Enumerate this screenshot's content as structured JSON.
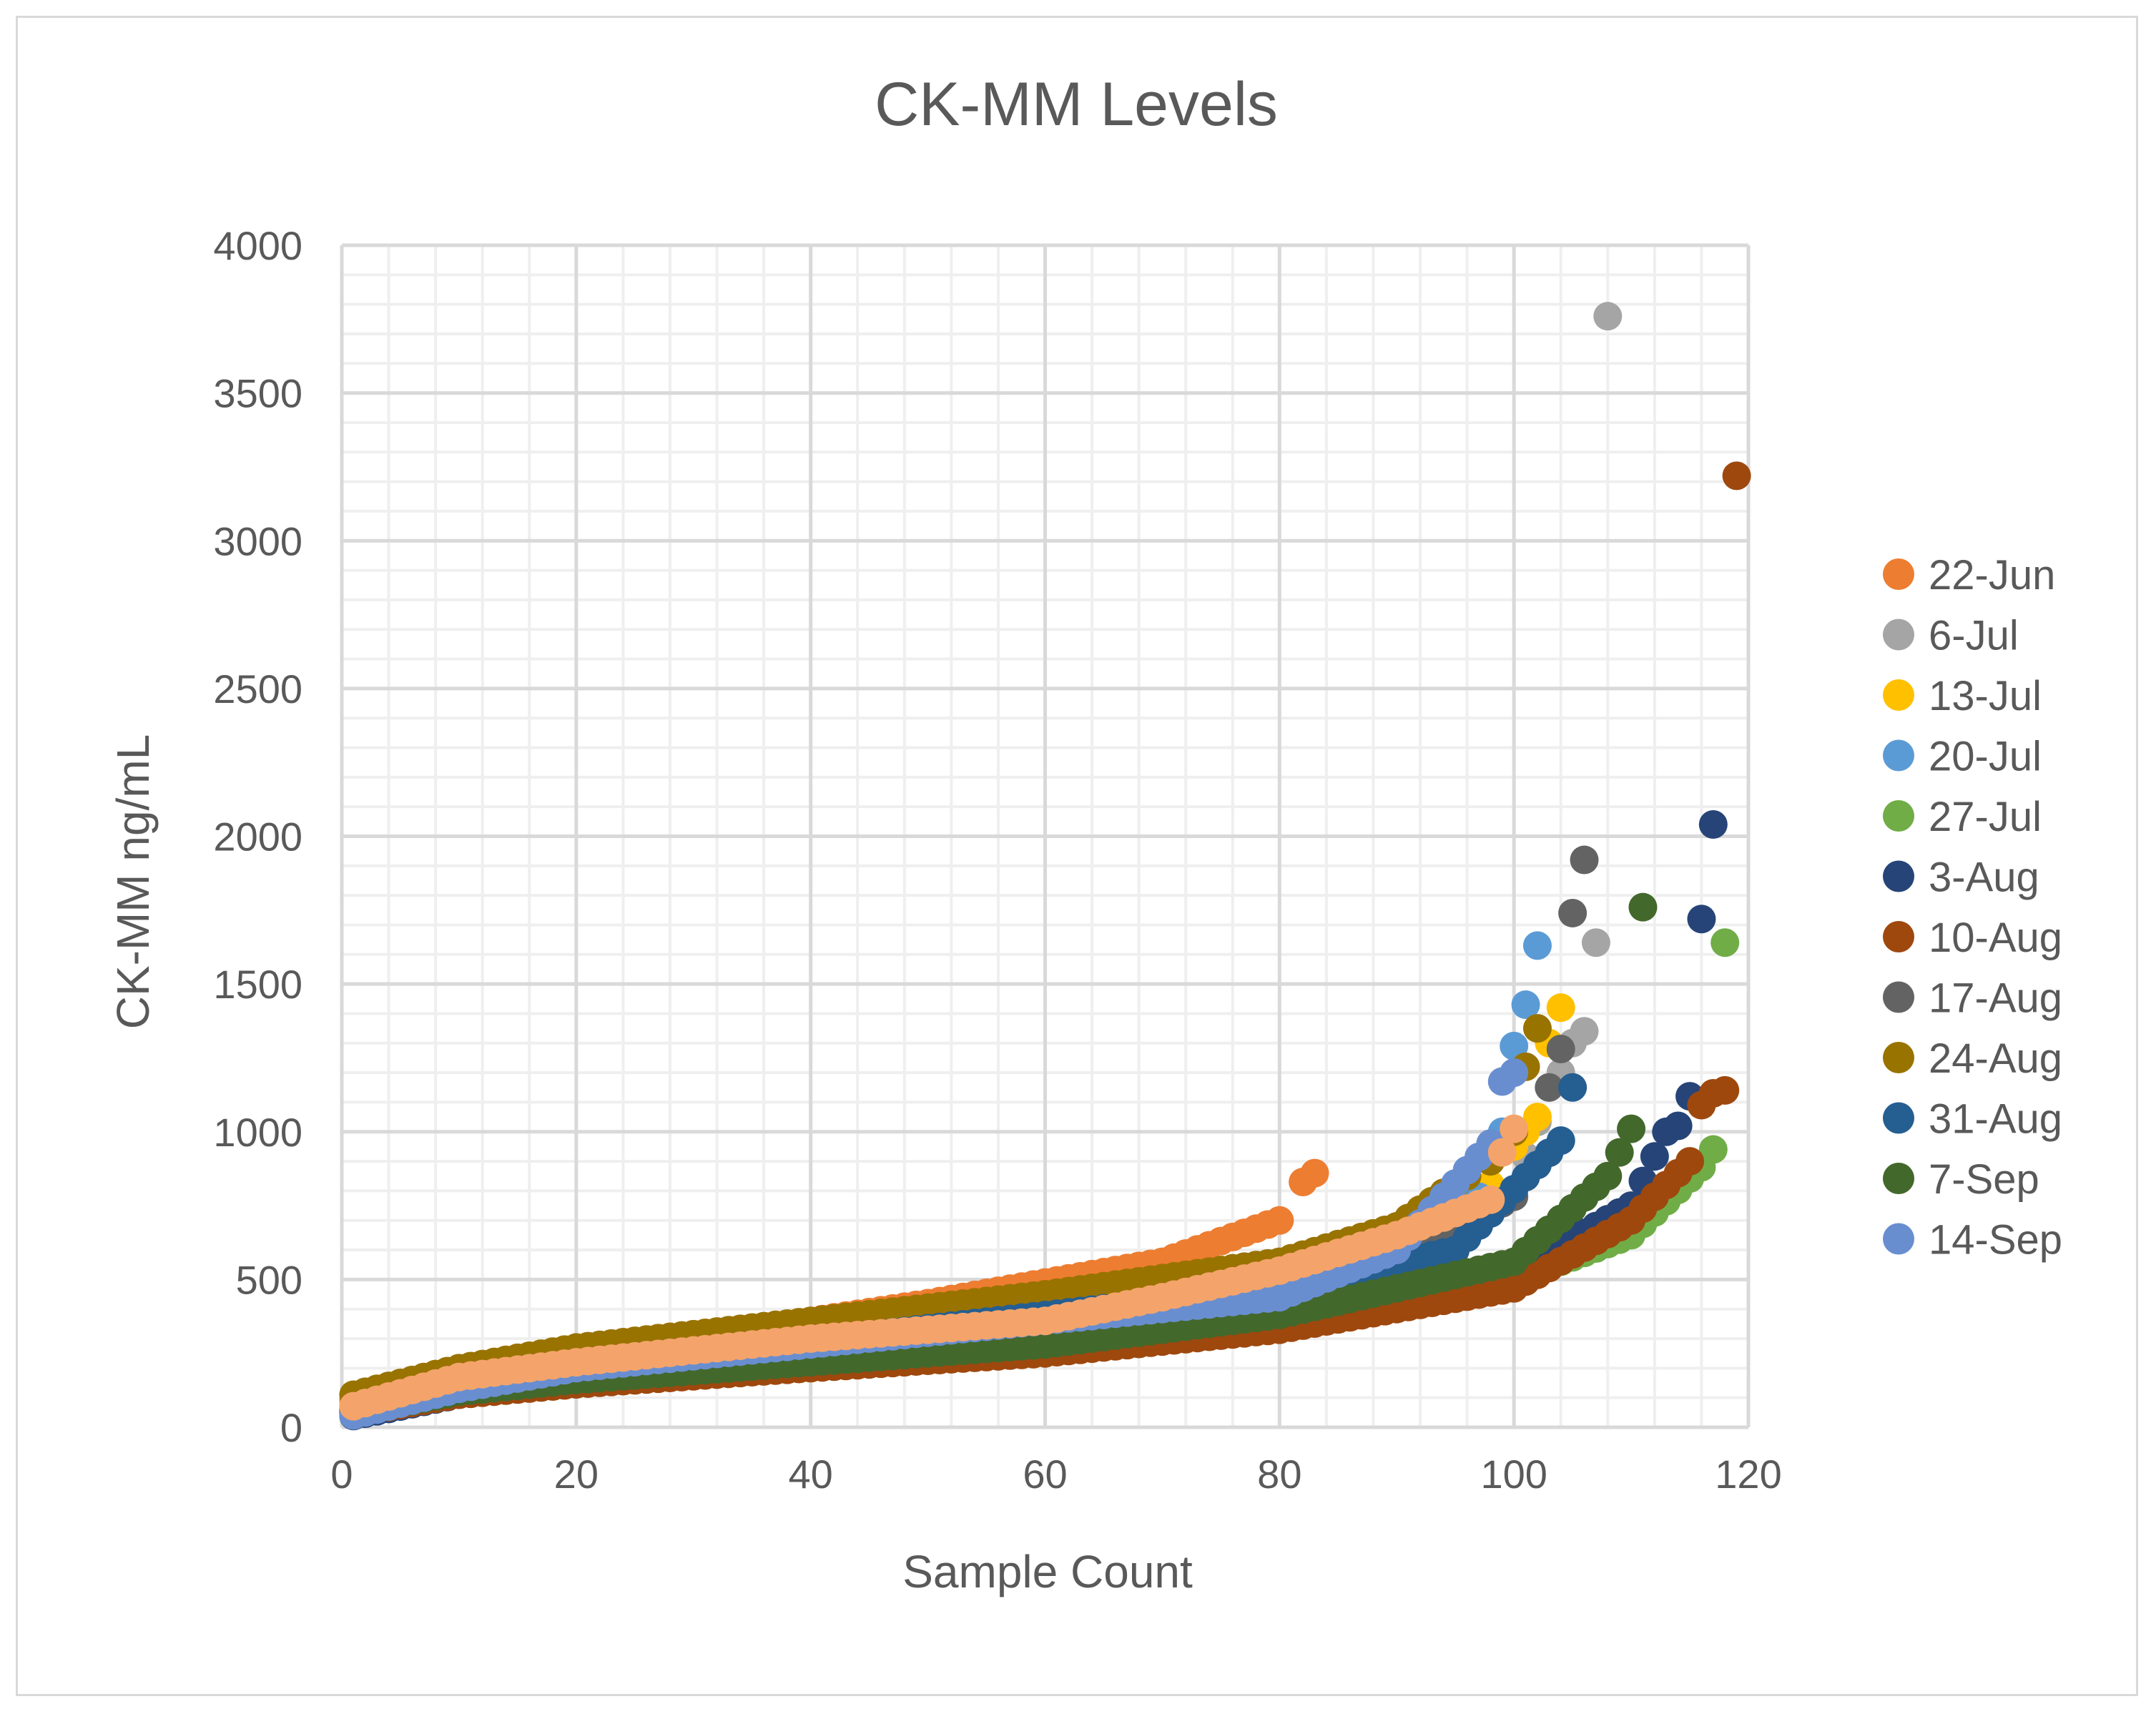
{
  "chart_data": {
    "type": "scatter",
    "title": "CK-MM Levels",
    "xlabel": "Sample Count",
    "ylabel": "CK-MM ng/mL",
    "xlim": [
      0,
      120
    ],
    "ylim": [
      0,
      4000
    ],
    "x_ticks": [
      0,
      20,
      40,
      60,
      80,
      100,
      120
    ],
    "y_ticks": [
      0,
      500,
      1000,
      1500,
      2000,
      2500,
      3000,
      3500,
      4000
    ],
    "x_tick_labels": [
      "0",
      "20",
      "40",
      "60",
      "80",
      "100",
      "120"
    ],
    "y_tick_labels": [
      "0",
      "500",
      "1000",
      "1500",
      "2000",
      "2500",
      "3000",
      "3500",
      "4000"
    ],
    "grid": "major and minor",
    "legend_position": "right",
    "series": [
      {
        "name": "22-Jun",
        "color": "#ED7D31",
        "n": 83,
        "curve": [
          [
            0,
            80
          ],
          [
            10,
            190
          ],
          [
            20,
            250
          ],
          [
            40,
            360
          ],
          [
            50,
            420
          ],
          [
            60,
            490
          ],
          [
            70,
            560
          ],
          [
            75,
            630
          ],
          [
            80,
            700
          ]
        ],
        "outliers": [
          [
            82,
            830
          ],
          [
            83,
            860
          ]
        ]
      },
      {
        "name": "6-Jul",
        "color": "#A5A5A5",
        "n": 108,
        "curve": [
          [
            0,
            50
          ],
          [
            10,
            150
          ],
          [
            20,
            200
          ],
          [
            40,
            280
          ],
          [
            60,
            360
          ],
          [
            80,
            460
          ],
          [
            90,
            560
          ],
          [
            100,
            800
          ],
          [
            103,
            1150
          ]
        ],
        "outliers": [
          [
            104,
            1200
          ],
          [
            105,
            1300
          ],
          [
            106,
            1340
          ],
          [
            107,
            1640
          ],
          [
            108,
            3760
          ]
        ]
      },
      {
        "name": "13-Jul",
        "color": "#FFC000",
        "n": 104,
        "curve": [
          [
            0,
            60
          ],
          [
            10,
            160
          ],
          [
            20,
            210
          ],
          [
            40,
            290
          ],
          [
            60,
            370
          ],
          [
            80,
            470
          ],
          [
            90,
            560
          ],
          [
            98,
            820
          ]
        ],
        "outliers": [
          [
            100,
            950
          ],
          [
            101,
            1000
          ],
          [
            102,
            1050
          ],
          [
            103,
            1300
          ],
          [
            104,
            1420
          ]
        ]
      },
      {
        "name": "20-Jul",
        "color": "#5B9BD5",
        "n": 102,
        "curve": [
          [
            0,
            40
          ],
          [
            10,
            140
          ],
          [
            20,
            200
          ],
          [
            40,
            290
          ],
          [
            60,
            370
          ],
          [
            80,
            460
          ],
          [
            90,
            560
          ],
          [
            97,
            780
          ]
        ],
        "outliers": [
          [
            98,
            900
          ],
          [
            99,
            1000
          ],
          [
            100,
            1290
          ],
          [
            101,
            1430
          ],
          [
            102,
            1630
          ]
        ]
      },
      {
        "name": "27-Jul",
        "color": "#70AD47",
        "n": 118,
        "curve": [
          [
            0,
            50
          ],
          [
            10,
            120
          ],
          [
            20,
            160
          ],
          [
            40,
            220
          ],
          [
            60,
            280
          ],
          [
            80,
            360
          ],
          [
            100,
            500
          ],
          [
            110,
            650
          ],
          [
            116,
            880
          ]
        ],
        "outliers": [
          [
            117,
            940
          ],
          [
            118,
            1640
          ]
        ]
      },
      {
        "name": "3-Aug",
        "color": "#264478",
        "n": 117,
        "curve": [
          [
            0,
            30
          ],
          [
            10,
            110
          ],
          [
            20,
            150
          ],
          [
            40,
            220
          ],
          [
            60,
            300
          ],
          [
            80,
            380
          ],
          [
            100,
            520
          ],
          [
            110,
            750
          ],
          [
            113,
            1000
          ]
        ],
        "outliers": [
          [
            114,
            1020
          ],
          [
            115,
            1120
          ],
          [
            116,
            1720
          ],
          [
            117,
            2040
          ]
        ]
      },
      {
        "name": "10-Aug",
        "color": "#9E480E",
        "n": 119,
        "curve": [
          [
            0,
            40
          ],
          [
            10,
            110
          ],
          [
            20,
            145
          ],
          [
            40,
            200
          ],
          [
            60,
            250
          ],
          [
            80,
            330
          ],
          [
            100,
            470
          ],
          [
            110,
            700
          ],
          [
            115,
            900
          ]
        ],
        "outliers": [
          [
            116,
            1090
          ],
          [
            117,
            1130
          ],
          [
            118,
            1140
          ],
          [
            119,
            3220
          ]
        ]
      },
      {
        "name": "17-Aug",
        "color": "#636363",
        "n": 106,
        "curve": [
          [
            0,
            50
          ],
          [
            10,
            150
          ],
          [
            20,
            200
          ],
          [
            40,
            280
          ],
          [
            60,
            360
          ],
          [
            80,
            460
          ],
          [
            90,
            560
          ],
          [
            100,
            780
          ]
        ],
        "outliers": [
          [
            103,
            1150
          ],
          [
            104,
            1280
          ],
          [
            105,
            1740
          ],
          [
            106,
            1920
          ]
        ]
      },
      {
        "name": "24-Aug",
        "color": "#997300",
        "n": 102,
        "curve": [
          [
            0,
            100
          ],
          [
            10,
            200
          ],
          [
            20,
            270
          ],
          [
            40,
            360
          ],
          [
            60,
            450
          ],
          [
            80,
            560
          ],
          [
            90,
            680
          ],
          [
            96,
            850
          ]
        ],
        "outliers": [
          [
            98,
            900
          ],
          [
            100,
            1000
          ],
          [
            101,
            1220
          ],
          [
            102,
            1350
          ]
        ]
      },
      {
        "name": "31-Aug",
        "color": "#255E91",
        "n": 105,
        "curve": [
          [
            0,
            40
          ],
          [
            10,
            140
          ],
          [
            20,
            200
          ],
          [
            40,
            290
          ],
          [
            60,
            380
          ],
          [
            80,
            470
          ],
          [
            95,
            600
          ],
          [
            104,
            970
          ]
        ],
        "outliers": [
          [
            105,
            1150
          ]
        ]
      },
      {
        "name": "7-Sep",
        "color": "#43682B",
        "n": 111,
        "curve": [
          [
            0,
            40
          ],
          [
            10,
            120
          ],
          [
            20,
            160
          ],
          [
            40,
            220
          ],
          [
            60,
            280
          ],
          [
            80,
            380
          ],
          [
            100,
            560
          ],
          [
            108,
            850
          ],
          [
            110,
            1010
          ]
        ],
        "outliers": [
          [
            111,
            1760
          ]
        ]
      },
      {
        "name": "14-Sep",
        "color": "#698ED0",
        "n": 100,
        "curve": [
          [
            0,
            30
          ],
          [
            10,
            130
          ],
          [
            20,
            200
          ],
          [
            40,
            280
          ],
          [
            60,
            360
          ],
          [
            80,
            440
          ],
          [
            90,
            600
          ],
          [
            98,
            960
          ]
        ],
        "outliers": [
          [
            99,
            1170
          ],
          [
            100,
            1200
          ]
        ]
      },
      {
        "name": "",
        "color": "#F4A46B",
        "n": 100,
        "curve": [
          [
            0,
            60
          ],
          [
            10,
            170
          ],
          [
            20,
            220
          ],
          [
            40,
            300
          ],
          [
            60,
            360
          ],
          [
            70,
            440
          ],
          [
            80,
            530
          ],
          [
            90,
            650
          ],
          [
            98,
            770
          ]
        ],
        "outliers": [
          [
            99,
            930
          ],
          [
            100,
            1010
          ]
        ]
      }
    ]
  }
}
